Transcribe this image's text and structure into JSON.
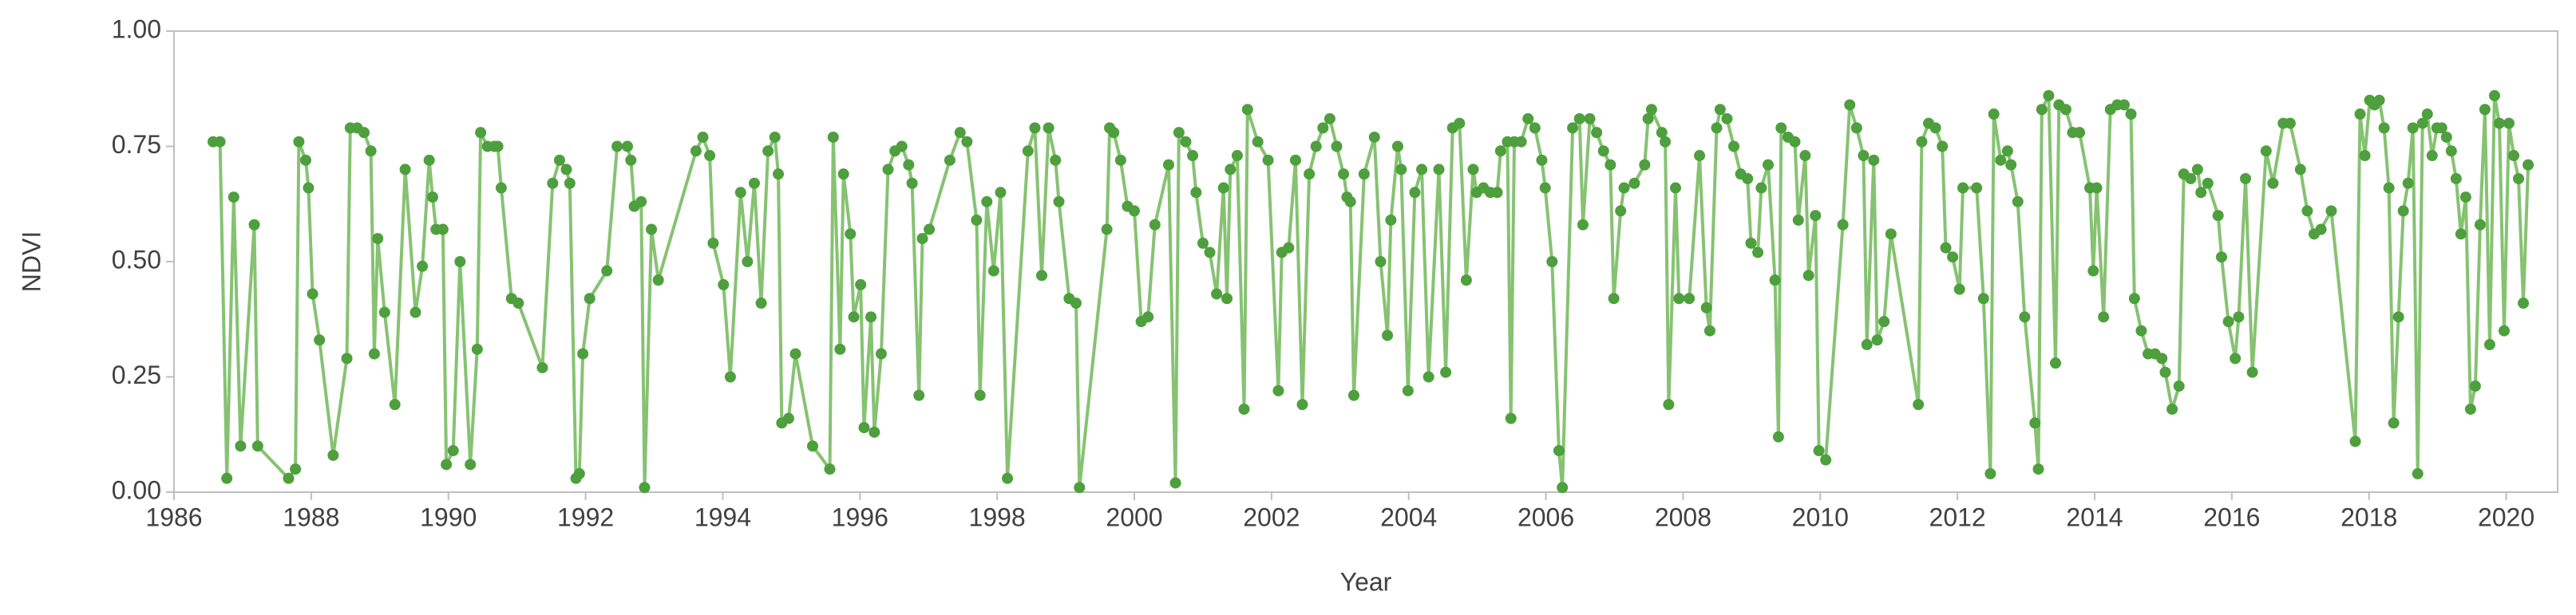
{
  "chart_data": {
    "type": "line",
    "xlabel": "Year",
    "ylabel": "NDVI",
    "color": "#4e9f3d",
    "line_color": "#86c272",
    "xlim": [
      1986,
      2020.75
    ],
    "ylim": [
      0,
      1
    ],
    "xticks": [
      1986,
      1988,
      1990,
      1992,
      1994,
      1996,
      1998,
      2000,
      2002,
      2004,
      2006,
      2008,
      2010,
      2012,
      2014,
      2016,
      2018,
      2020
    ],
    "yticks": [
      {
        "value": 0,
        "label": "0.00"
      },
      {
        "value": 0.25,
        "label": "0.25"
      },
      {
        "value": 0.5,
        "label": "0.50"
      },
      {
        "value": 0.75,
        "label": "0.75"
      },
      {
        "value": 1,
        "label": "1.00"
      }
    ],
    "x": [
      1986.57,
      1986.67,
      1986.77,
      1986.87,
      1986.97,
      1987.17,
      1987.22,
      1987.67,
      1987.77,
      1987.82,
      1987.92,
      1987.96,
      1988.02,
      1988.12,
      1988.32,
      1988.52,
      1988.57,
      1988.67,
      1988.77,
      1988.87,
      1988.92,
      1988.97,
      1989.07,
      1989.22,
      1989.37,
      1989.52,
      1989.62,
      1989.72,
      1989.77,
      1989.82,
      1989.92,
      1989.97,
      1990.07,
      1990.17,
      1990.32,
      1990.42,
      1990.47,
      1990.57,
      1990.67,
      1990.72,
      1990.77,
      1990.92,
      1991.02,
      1991.37,
      1991.52,
      1991.62,
      1991.72,
      1991.77,
      1991.86,
      1991.91,
      1991.96,
      1992.06,
      1992.31,
      1992.46,
      1992.61,
      1992.66,
      1992.71,
      1992.81,
      1992.86,
      1992.96,
      1993.06,
      1993.61,
      1993.71,
      1993.81,
      1993.86,
      1994.01,
      1994.11,
      1994.26,
      1994.36,
      1994.46,
      1994.56,
      1994.66,
      1994.76,
      1994.81,
      1994.86,
      1994.96,
      1995.06,
      1995.31,
      1995.56,
      1995.61,
      1995.71,
      1995.76,
      1995.86,
      1995.91,
      1996.01,
      1996.06,
      1996.16,
      1996.21,
      1996.31,
      1996.41,
      1996.51,
      1996.61,
      1996.71,
      1996.76,
      1996.86,
      1996.91,
      1997.01,
      1997.31,
      1997.46,
      1997.56,
      1997.7,
      1997.75,
      1997.85,
      1997.95,
      1998.05,
      1998.15,
      1998.45,
      1998.55,
      1998.65,
      1998.75,
      1998.85,
      1998.9,
      1999.05,
      1999.15,
      1999.2,
      1999.6,
      1999.64,
      1999.7,
      1999.8,
      1999.9,
      2000.0,
      2000.1,
      2000.2,
      2000.3,
      2000.5,
      2000.6,
      2000.65,
      2000.75,
      2000.85,
      2000.9,
      2001.0,
      2001.1,
      2001.2,
      2001.3,
      2001.35,
      2001.4,
      2001.5,
      2001.6,
      2001.65,
      2001.8,
      2001.95,
      2002.1,
      2002.15,
      2002.25,
      2002.35,
      2002.45,
      2002.55,
      2002.65,
      2002.75,
      2002.85,
      2002.95,
      2003.05,
      2003.1,
      2003.15,
      2003.2,
      2003.35,
      2003.5,
      2003.59,
      2003.69,
      2003.74,
      2003.84,
      2003.89,
      2003.99,
      2004.09,
      2004.19,
      2004.29,
      2004.44,
      2004.54,
      2004.64,
      2004.74,
      2004.84,
      2004.94,
      2004.99,
      2005.09,
      2005.19,
      2005.29,
      2005.34,
      2005.44,
      2005.49,
      2005.54,
      2005.64,
      2005.74,
      2005.84,
      2005.94,
      2005.99,
      2006.09,
      2006.19,
      2006.24,
      2006.39,
      2006.49,
      2006.54,
      2006.64,
      2006.74,
      2006.84,
      2006.94,
      2006.99,
      2007.09,
      2007.14,
      2007.29,
      2007.44,
      2007.49,
      2007.54,
      2007.69,
      2007.74,
      2007.79,
      2007.89,
      2007.94,
      2008.09,
      2008.24,
      2008.34,
      2008.39,
      2008.49,
      2008.54,
      2008.64,
      2008.74,
      2008.84,
      2008.94,
      2008.99,
      2009.09,
      2009.14,
      2009.24,
      2009.34,
      2009.39,
      2009.43,
      2009.53,
      2009.63,
      2009.68,
      2009.78,
      2009.83,
      2009.93,
      2009.98,
      2010.08,
      2010.33,
      2010.43,
      2010.53,
      2010.63,
      2010.68,
      2010.78,
      2010.83,
      2010.93,
      2011.03,
      2011.43,
      2011.48,
      2011.58,
      2011.68,
      2011.78,
      2011.83,
      2011.93,
      2012.03,
      2012.08,
      2012.28,
      2012.38,
      2012.48,
      2012.53,
      2012.63,
      2012.73,
      2012.78,
      2012.88,
      2012.98,
      2013.13,
      2013.18,
      2013.23,
      2013.33,
      2013.43,
      2013.48,
      2013.58,
      2013.68,
      2013.78,
      2013.93,
      2013.98,
      2014.03,
      2014.13,
      2014.23,
      2014.33,
      2014.43,
      2014.53,
      2014.58,
      2014.68,
      2014.78,
      2014.88,
      2014.98,
      2015.03,
      2015.13,
      2015.23,
      2015.3,
      2015.4,
      2015.5,
      2015.55,
      2015.65,
      2015.8,
      2015.85,
      2015.95,
      2016.05,
      2016.1,
      2016.2,
      2016.3,
      2016.5,
      2016.6,
      2016.75,
      2016.85,
      2017.0,
      2017.1,
      2017.2,
      2017.3,
      2017.45,
      2017.8,
      2017.87,
      2017.94,
      2018.01,
      2018.08,
      2018.15,
      2018.22,
      2018.29,
      2018.36,
      2018.43,
      2018.5,
      2018.57,
      2018.64,
      2018.71,
      2018.78,
      2018.85,
      2018.92,
      2018.99,
      2019.06,
      2019.13,
      2019.2,
      2019.27,
      2019.34,
      2019.41,
      2019.48,
      2019.55,
      2019.62,
      2019.69,
      2019.76,
      2019.83,
      2019.9,
      2019.97,
      2020.04,
      2020.11,
      2020.18,
      2020.25,
      2020.32
    ],
    "values": [
      0.76,
      0.76,
      0.03,
      0.64,
      0.1,
      0.58,
      0.1,
      0.03,
      0.05,
      0.76,
      0.72,
      0.66,
      0.43,
      0.33,
      0.08,
      0.29,
      0.79,
      0.79,
      0.78,
      0.74,
      0.3,
      0.55,
      0.39,
      0.19,
      0.7,
      0.39,
      0.49,
      0.72,
      0.64,
      0.57,
      0.57,
      0.06,
      0.09,
      0.5,
      0.06,
      0.31,
      0.78,
      0.75,
      0.75,
      0.75,
      0.66,
      0.42,
      0.41,
      0.27,
      0.67,
      0.72,
      0.7,
      0.67,
      0.03,
      0.04,
      0.3,
      0.42,
      0.48,
      0.75,
      0.75,
      0.72,
      0.62,
      0.63,
      0.01,
      0.57,
      0.46,
      0.74,
      0.77,
      0.73,
      0.54,
      0.45,
      0.25,
      0.65,
      0.5,
      0.67,
      0.41,
      0.74,
      0.77,
      0.69,
      0.15,
      0.16,
      0.3,
      0.1,
      0.05,
      0.77,
      0.31,
      0.69,
      0.56,
      0.38,
      0.45,
      0.14,
      0.38,
      0.13,
      0.3,
      0.7,
      0.74,
      0.75,
      0.71,
      0.67,
      0.21,
      0.55,
      0.57,
      0.72,
      0.78,
      0.76,
      0.59,
      0.21,
      0.63,
      0.48,
      0.65,
      0.03,
      0.74,
      0.79,
      0.47,
      0.79,
      0.72,
      0.63,
      0.42,
      0.41,
      0.01,
      0.57,
      0.79,
      0.78,
      0.72,
      0.62,
      0.61,
      0.37,
      0.38,
      0.58,
      0.71,
      0.02,
      0.78,
      0.76,
      0.73,
      0.65,
      0.54,
      0.52,
      0.43,
      0.66,
      0.42,
      0.7,
      0.73,
      0.18,
      0.83,
      0.76,
      0.72,
      0.22,
      0.52,
      0.53,
      0.72,
      0.19,
      0.69,
      0.75,
      0.79,
      0.81,
      0.75,
      0.69,
      0.64,
      0.63,
      0.21,
      0.69,
      0.77,
      0.5,
      0.34,
      0.59,
      0.75,
      0.7,
      0.22,
      0.65,
      0.7,
      0.25,
      0.7,
      0.26,
      0.79,
      0.8,
      0.46,
      0.7,
      0.65,
      0.66,
      0.65,
      0.65,
      0.74,
      0.76,
      0.16,
      0.76,
      0.76,
      0.81,
      0.79,
      0.72,
      0.66,
      0.5,
      0.09,
      0.01,
      0.79,
      0.81,
      0.58,
      0.81,
      0.78,
      0.74,
      0.71,
      0.42,
      0.61,
      0.66,
      0.67,
      0.71,
      0.81,
      0.83,
      0.78,
      0.76,
      0.19,
      0.66,
      0.42,
      0.42,
      0.73,
      0.4,
      0.35,
      0.79,
      0.83,
      0.81,
      0.75,
      0.69,
      0.68,
      0.54,
      0.52,
      0.66,
      0.71,
      0.46,
      0.12,
      0.79,
      0.77,
      0.76,
      0.59,
      0.73,
      0.47,
      0.6,
      0.09,
      0.07,
      0.58,
      0.84,
      0.79,
      0.73,
      0.32,
      0.72,
      0.33,
      0.37,
      0.56,
      0.19,
      0.76,
      0.8,
      0.79,
      0.75,
      0.53,
      0.51,
      0.44,
      0.66,
      0.66,
      0.42,
      0.04,
      0.82,
      0.72,
      0.74,
      0.71,
      0.63,
      0.38,
      0.15,
      0.05,
      0.83,
      0.86,
      0.28,
      0.84,
      0.83,
      0.78,
      0.78,
      0.66,
      0.48,
      0.66,
      0.38,
      0.83,
      0.84,
      0.84,
      0.82,
      0.42,
      0.35,
      0.3,
      0.3,
      0.29,
      0.26,
      0.18,
      0.23,
      0.69,
      0.68,
      0.7,
      0.65,
      0.67,
      0.6,
      0.51,
      0.37,
      0.29,
      0.38,
      0.68,
      0.26,
      0.74,
      0.67,
      0.8,
      0.8,
      0.7,
      0.61,
      0.56,
      0.57,
      0.61,
      0.11,
      0.82,
      0.73,
      0.85,
      0.84,
      0.85,
      0.79,
      0.66,
      0.15,
      0.38,
      0.61,
      0.67,
      0.79,
      0.04,
      0.8,
      0.82,
      0.73,
      0.79,
      0.79,
      0.77,
      0.74,
      0.68,
      0.56,
      0.64,
      0.18,
      0.23,
      0.58,
      0.83,
      0.32,
      0.86,
      0.8,
      0.35,
      0.8,
      0.73,
      0.68,
      0.41,
      0.71
    ]
  }
}
